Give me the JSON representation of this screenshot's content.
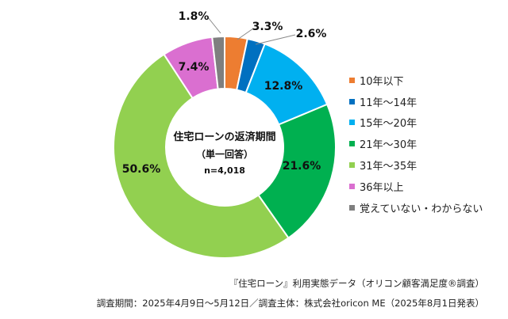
{
  "chart_data": {
    "type": "pie",
    "donut": true,
    "center_title": "住宅ローンの返済期間",
    "center_subtitle": "（単一回答）",
    "center_n": "n=4,018",
    "categories": [
      "10年以下",
      "11年～14年",
      "15年～20年",
      "21年～30年",
      "31年～35年",
      "36年以上",
      "覚えていない・わからない"
    ],
    "values": [
      3.3,
      2.6,
      12.8,
      21.6,
      50.6,
      7.4,
      1.8
    ],
    "labels": [
      "3.3%",
      "2.6%",
      "12.8%",
      "21.6%",
      "50.6%",
      "7.4%",
      "1.8%"
    ],
    "colors": [
      "#ED7D31",
      "#0070C0",
      "#00B0F0",
      "#00B050",
      "#92D050",
      "#DA6FD0",
      "#7F7F7F"
    ],
    "start": "top",
    "direction": "clockwise",
    "legend_position": "right"
  },
  "footer": {
    "source": "『住宅ローン』利用実態データ（オリコン顧客満足度®調査）",
    "period": "調査期間：2025年4月9日～5月12日／調査主体：株式会社oricon ME（2025年8月1日発表）"
  }
}
